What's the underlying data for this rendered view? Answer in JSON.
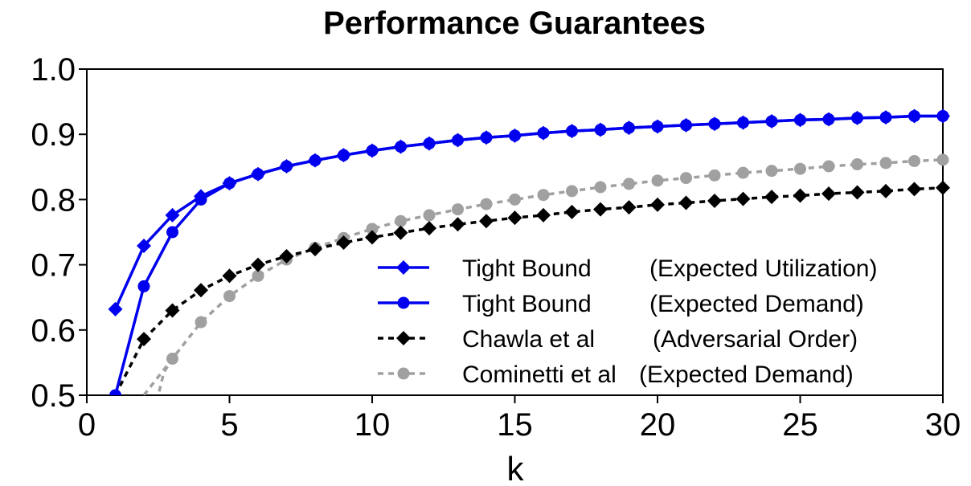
{
  "chart_data": {
    "type": "line",
    "title": "Performance Guarantees",
    "xlabel": "k",
    "ylabel": "",
    "xlim": [
      0,
      30
    ],
    "ylim": [
      0.5,
      1.0
    ],
    "xticks": [
      "0",
      "5",
      "10",
      "15",
      "20",
      "25",
      "30"
    ],
    "yticks": [
      "0.5",
      "0.6",
      "0.7",
      "0.8",
      "0.9",
      "1.0"
    ],
    "grid": false,
    "legend": "bottom-right",
    "x": [
      1,
      2,
      3,
      4,
      5,
      6,
      7,
      8,
      9,
      10,
      11,
      12,
      13,
      14,
      15,
      16,
      17,
      18,
      19,
      20,
      21,
      22,
      23,
      24,
      25,
      26,
      27,
      28,
      29,
      30
    ],
    "series": [
      {
        "legend_name": "Tight Bound",
        "legend_desc": "(Expected Utilization)",
        "color": "#0000ee",
        "dash": "solid",
        "marker": "diamond-cross",
        "values": [
          0.632,
          0.729,
          0.776,
          0.805,
          0.825,
          0.839,
          0.851,
          0.86,
          0.868,
          0.875,
          0.881,
          0.886,
          0.891,
          0.895,
          0.898,
          0.902,
          0.905,
          0.907,
          0.91,
          0.912,
          0.914,
          0.916,
          0.918,
          0.92,
          0.922,
          0.923,
          0.925,
          0.926,
          0.928,
          0.928
        ]
      },
      {
        "legend_name": "Tight Bound",
        "legend_desc": "(Expected Demand)",
        "color": "#0000ee",
        "dash": "solid",
        "marker": "circle",
        "values": [
          0.5,
          0.667,
          0.75,
          0.8,
          0.825,
          0.839,
          0.851,
          0.86,
          0.868,
          0.875,
          0.881,
          0.886,
          0.891,
          0.895,
          0.898,
          0.902,
          0.905,
          0.907,
          0.91,
          0.912,
          0.914,
          0.916,
          0.918,
          0.92,
          0.922,
          0.923,
          0.925,
          0.926,
          0.928,
          0.928
        ]
      },
      {
        "legend_name": "Chawla et al",
        "legend_desc": "(Adversarial Order)",
        "color": "#000000",
        "dash": "dotted",
        "marker": "diamond-cross",
        "values": [
          0.5,
          0.586,
          0.63,
          0.661,
          0.683,
          0.7,
          0.713,
          0.724,
          0.734,
          0.742,
          0.749,
          0.756,
          0.762,
          0.767,
          0.772,
          0.776,
          0.781,
          0.785,
          0.788,
          0.792,
          0.795,
          0.798,
          0.801,
          0.804,
          0.806,
          0.809,
          0.811,
          0.813,
          0.816,
          0.818
        ]
      },
      {
        "legend_name": "Cominetti et al",
        "legend_desc": "(Expected Demand)",
        "color": "#a0a0a0",
        "dash": "dotted",
        "marker": "circle",
        "values": [
          null,
          0.5,
          0.556,
          0.612,
          0.652,
          0.683,
          0.708,
          0.726,
          0.741,
          0.755,
          0.767,
          0.776,
          0.785,
          0.793,
          0.8,
          0.807,
          0.813,
          0.819,
          0.824,
          0.829,
          0.833,
          0.837,
          0.841,
          0.844,
          0.847,
          0.851,
          0.854,
          0.856,
          0.859,
          0.861
        ]
      }
    ]
  }
}
